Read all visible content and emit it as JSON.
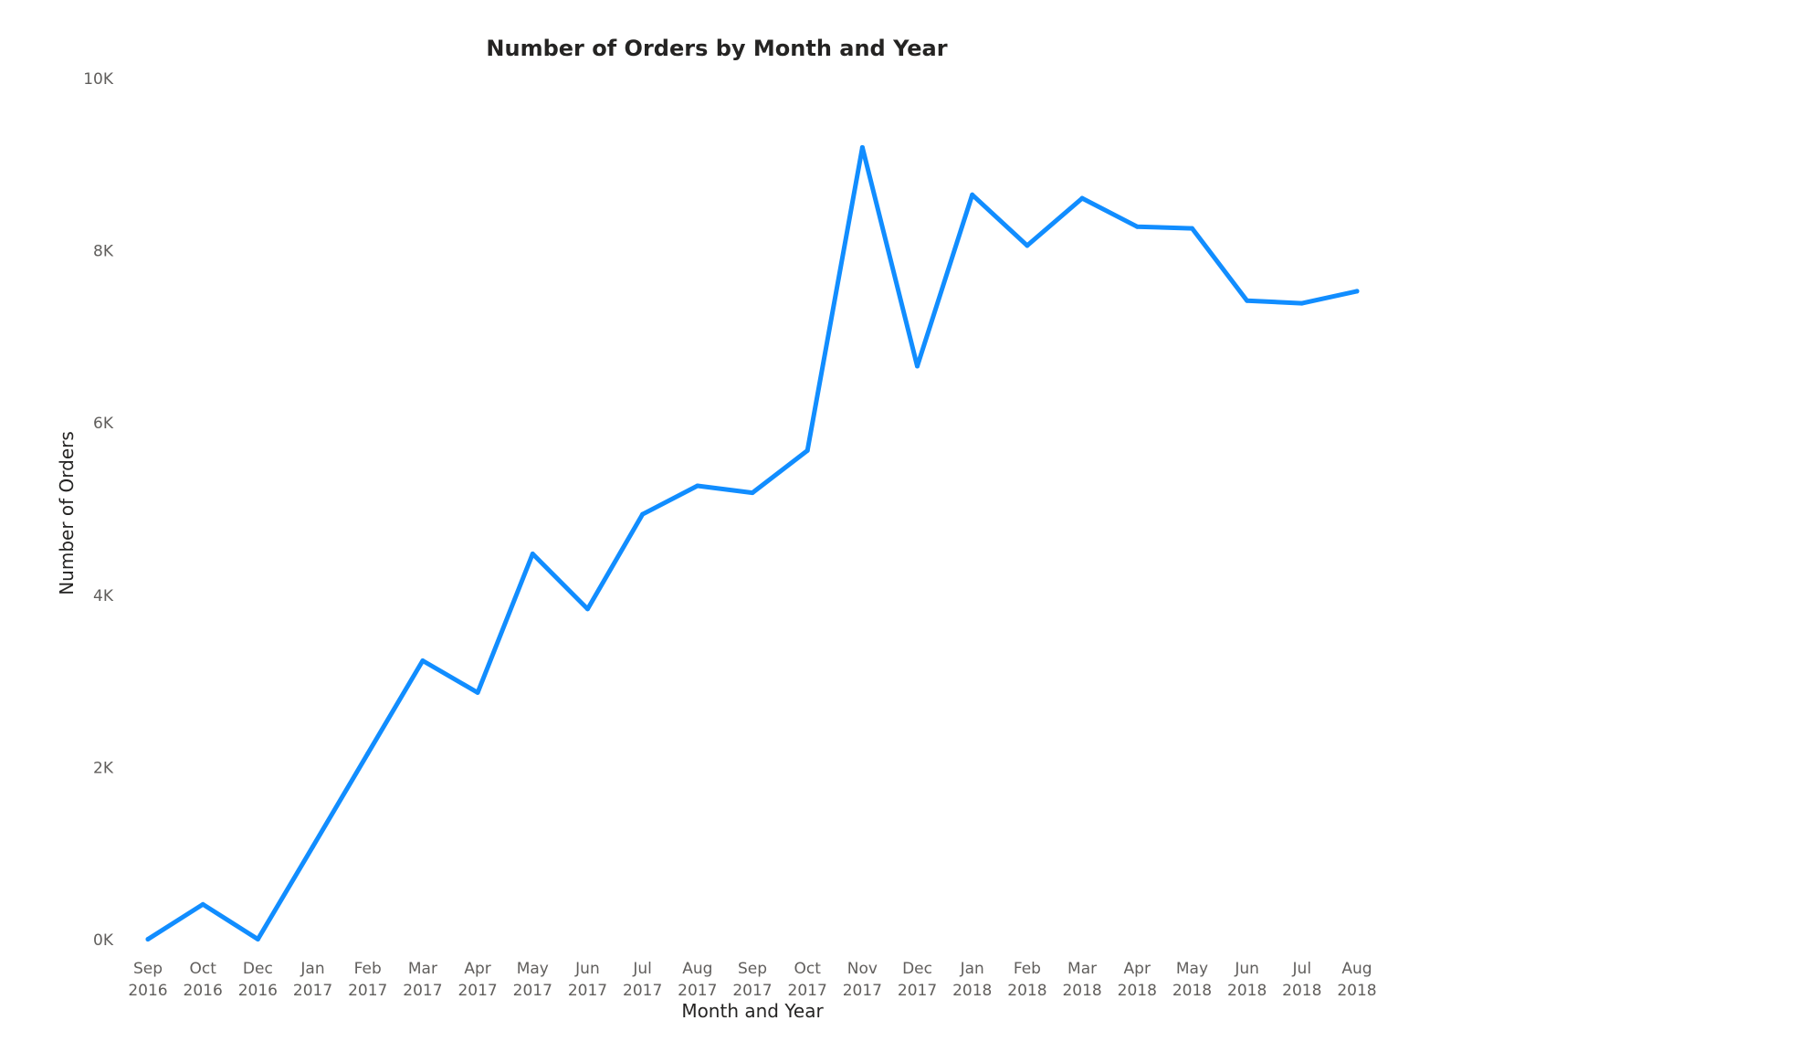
{
  "chart_data": {
    "type": "line",
    "title": "Number of Orders by Month and Year",
    "xlabel": "Month and Year",
    "ylabel": "Number of Orders",
    "ylim": [
      0,
      10000
    ],
    "y_ticks": [
      "0K",
      "2K",
      "4K",
      "6K",
      "8K",
      "10K"
    ],
    "y_tick_values": [
      0,
      2000,
      4000,
      6000,
      8000,
      10000
    ],
    "grid": false,
    "line_color": "#118DFF",
    "categories": [
      "Sep 2016",
      "Oct 2016",
      "Dec 2016",
      "Jan 2017",
      "Feb 2017",
      "Mar 2017",
      "Apr 2017",
      "May 2017",
      "Jun 2017",
      "Jul 2017",
      "Aug 2017",
      "Sep 2017",
      "Oct 2017",
      "Nov 2017",
      "Dec 2017",
      "Jan 2018",
      "Feb 2018",
      "Mar 2018",
      "Apr 2018",
      "May 2018",
      "Jun 2018",
      "Jul 2018",
      "Aug 2018"
    ],
    "x_tick_months": [
      "Sep",
      "Oct",
      "Dec",
      "Jan",
      "Feb",
      "Mar",
      "Apr",
      "May",
      "Jun",
      "Jul",
      "Aug",
      "Sep",
      "Oct",
      "Nov",
      "Dec",
      "Jan",
      "Feb",
      "Mar",
      "Apr",
      "May",
      "Jun",
      "Jul",
      "Aug"
    ],
    "x_tick_years": [
      "2016",
      "2016",
      "2016",
      "2017",
      "2017",
      "2017",
      "2017",
      "2017",
      "2017",
      "2017",
      "2017",
      "2017",
      "2017",
      "2017",
      "2017",
      "2018",
      "2018",
      "2018",
      "2018",
      "2018",
      "2018",
      "2018",
      "2018"
    ],
    "series": [
      {
        "values": [
          5,
          410,
          5,
          1080,
          2160,
          3240,
          2870,
          4480,
          3840,
          4940,
          5270,
          5190,
          5680,
          9200,
          6660,
          8650,
          8060,
          8610,
          8280,
          8260,
          7420,
          7390,
          7530
        ]
      }
    ]
  }
}
